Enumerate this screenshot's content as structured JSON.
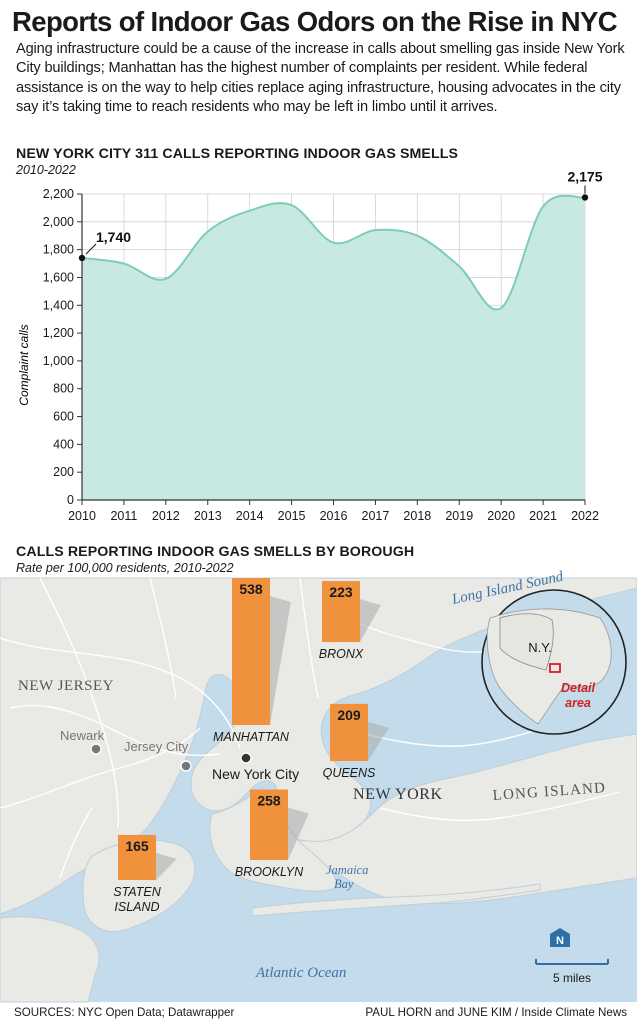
{
  "title": "Reports of Indoor Gas Odors on the Rise in NYC",
  "deck": "Aging infrastructure could be a cause of the increase in calls about smelling gas inside New York City buildings; Manhattan has the highest number of complaints per resident. While federal assistance is on the way to help cities replace aging infrastructure, housing advocates in the city say it’s taking time to reach residents who may be left in limbo until it arrives.",
  "chart_section": {
    "title": "NEW YORK CITY 311 CALLS REPORTING INDOOR GAS SMELLS",
    "subtitle": "2010-2022"
  },
  "chart_data": [
    {
      "type": "area",
      "title": "NEW YORK CITY 311 CALLS REPORTING INDOOR GAS SMELLS",
      "subtitle": "2010-2022",
      "ylabel": "Complaint calls",
      "xlabel": "",
      "x": [
        2010,
        2011,
        2012,
        2013,
        2014,
        2015,
        2016,
        2017,
        2018,
        2019,
        2020,
        2021,
        2022
      ],
      "values": [
        1740,
        1700,
        1590,
        1930,
        2080,
        2120,
        1850,
        1940,
        1900,
        1680,
        1380,
        2110,
        2175
      ],
      "ylim": [
        0,
        2200
      ],
      "yticks": [
        0,
        200,
        400,
        600,
        800,
        1000,
        1200,
        1400,
        1600,
        1800,
        2000,
        2200
      ],
      "ytick_labels": [
        "0",
        "200",
        "400",
        "600",
        "800",
        "1,000",
        "1,200",
        "1,400",
        "1,600",
        "1,800",
        "2,000",
        "2,200"
      ],
      "xtick_labels": [
        "2010",
        "2011",
        "2012",
        "2013",
        "2014",
        "2015",
        "2016",
        "2017",
        "2018",
        "2019",
        "2020",
        "2021",
        "2022"
      ],
      "annotations": [
        {
          "x": 2010,
          "y": 1740,
          "label": "1,740"
        },
        {
          "x": 2022,
          "y": 2175,
          "label": "2,175"
        }
      ],
      "grid": true,
      "colors": {
        "fill": "#c8e9e1",
        "line": "#7ccdb9",
        "grid": "#d2d2d2"
      }
    },
    {
      "type": "bar",
      "title": "CALLS REPORTING INDOOR GAS SMELLS BY BOROUGH",
      "subtitle": "Rate per 100,000 residents, 2010-2022",
      "categories": [
        "MANHATTAN",
        "BRONX",
        "QUEENS",
        "BROOKLYN",
        "STATEN ISLAND"
      ],
      "values": [
        538,
        223,
        209,
        258,
        165
      ],
      "value_labels": [
        "538",
        "223",
        "209",
        "258",
        "165"
      ],
      "colors": {
        "bar": "#f0923b"
      }
    }
  ],
  "map_section": {
    "title": "CALLS REPORTING INDOOR GAS SMELLS BY BOROUGH",
    "subtitle": "Rate per 100,000 residents, 2010-2022",
    "boroughs": {
      "manhattan": {
        "name": "MANHATTAN",
        "value": "538"
      },
      "bronx": {
        "name": "BRONX",
        "value": "223"
      },
      "queens": {
        "name": "QUEENS",
        "value": "209"
      },
      "brooklyn": {
        "name": "BROOKLYN",
        "value": "258"
      },
      "staten_line1": "STATEN",
      "staten_line2": "ISLAND",
      "staten_value": "165"
    },
    "places": {
      "new_jersey": "NEW JERSEY",
      "newark": "Newark",
      "jersey_city": "Jersey City",
      "new_york_city": "New York City",
      "new_york": "NEW YORK",
      "long_island": "LONG ISLAND",
      "long_island_sound": "Long Island Sound",
      "jamaica_line1": "Jamaica",
      "jamaica_line2": "Bay",
      "atlantic": "Atlantic Ocean"
    },
    "inset": {
      "state": "N.Y.",
      "detail_line1": "Detail",
      "detail_line2": "area"
    },
    "north": "N",
    "scale": "5 miles",
    "colors": {
      "land": "#e9e9e5",
      "water": "#c3dbea",
      "bar": "#f0923b",
      "detail": "#d42020"
    }
  },
  "footer": {
    "sources": "SOURCES: NYC Open Data; Datawrapper",
    "credit": "PAUL HORN and JUNE KIM / Inside Climate News"
  }
}
